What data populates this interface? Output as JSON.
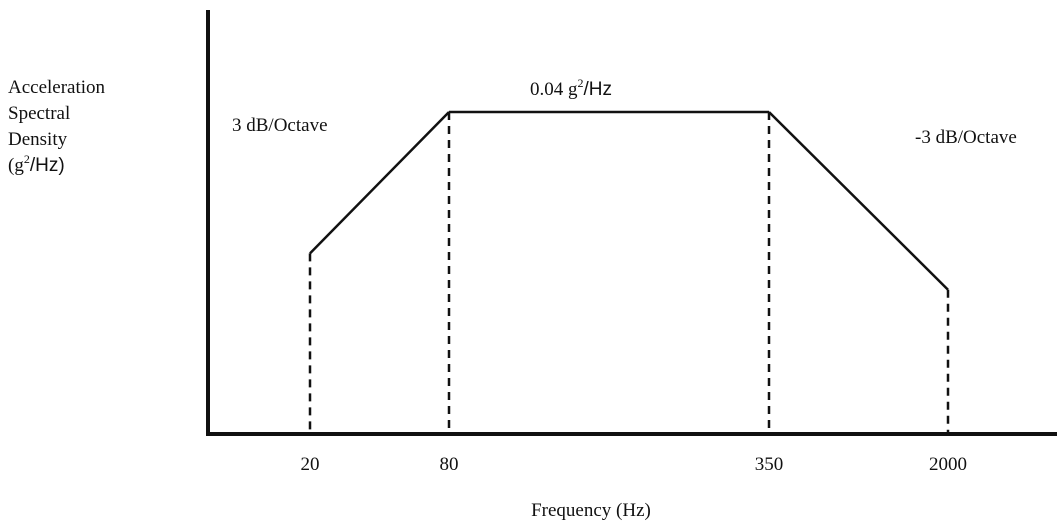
{
  "chart_data": {
    "type": "line",
    "title": "",
    "xlabel": "Frequency (Hz)",
    "ylabel": {
      "line1": "Acceleration",
      "line2": "Spectral",
      "line3": "Density",
      "line4_prefix": "(g",
      "line4_sup": "2",
      "line4_suffix": "/Hz)"
    },
    "x_scale": "log",
    "x_ticks": [
      "20",
      "80",
      "350",
      "2000"
    ],
    "points": [
      {
        "x": 20,
        "y": 0.01
      },
      {
        "x": 80,
        "y": 0.04
      },
      {
        "x": 350,
        "y": 0.04
      },
      {
        "x": 2000,
        "y": 0.007
      }
    ],
    "annotations": {
      "left_slope": "3 dB/Octave",
      "right_slope": "-3 dB/Octave",
      "plateau": {
        "value": "0.04 g",
        "sup": "2",
        "unit": "/Hz"
      }
    },
    "dashed_drop_lines": true,
    "grid": false,
    "legend": "none",
    "line_color": "#111111"
  }
}
